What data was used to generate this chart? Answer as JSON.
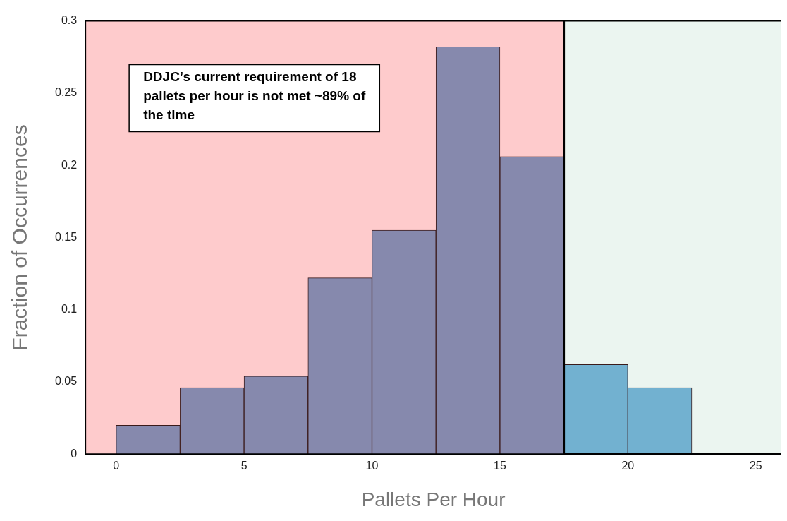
{
  "chart_data": {
    "type": "histogram",
    "xlabel": "Pallets Per Hour",
    "ylabel": "Fraction of Occurrences",
    "bins": [
      0,
      2.5,
      5,
      7.5,
      10,
      12.5,
      15,
      17.5,
      20,
      22.5
    ],
    "values": [
      0.02,
      0.046,
      0.054,
      0.122,
      0.155,
      0.282,
      0.206,
      0.062,
      0.046
    ],
    "colors": [
      "#8689ad",
      "#8689ad",
      "#8689ad",
      "#8689ad",
      "#8689ad",
      "#8689ad",
      "#8689ad",
      "#72b1d0",
      "#72b1d0"
    ],
    "xlim": [
      -1.2,
      26
    ],
    "xticks": [
      0,
      5,
      10,
      15,
      20,
      25
    ],
    "ylim": [
      0,
      0.3
    ],
    "yticks": [
      0,
      0.05,
      0.1,
      0.15,
      0.2,
      0.25,
      0.3
    ],
    "bands": [
      {
        "axis": "x",
        "from": -1.2,
        "to": 17.5,
        "color": "#fecbcc"
      },
      {
        "axis": "x",
        "from": 17.5,
        "to": 26,
        "color": "#ebf5f0"
      }
    ],
    "annotations": [
      "DDJC’s current requirement of 18 pallets per hour is not met ~89% of the time"
    ]
  }
}
